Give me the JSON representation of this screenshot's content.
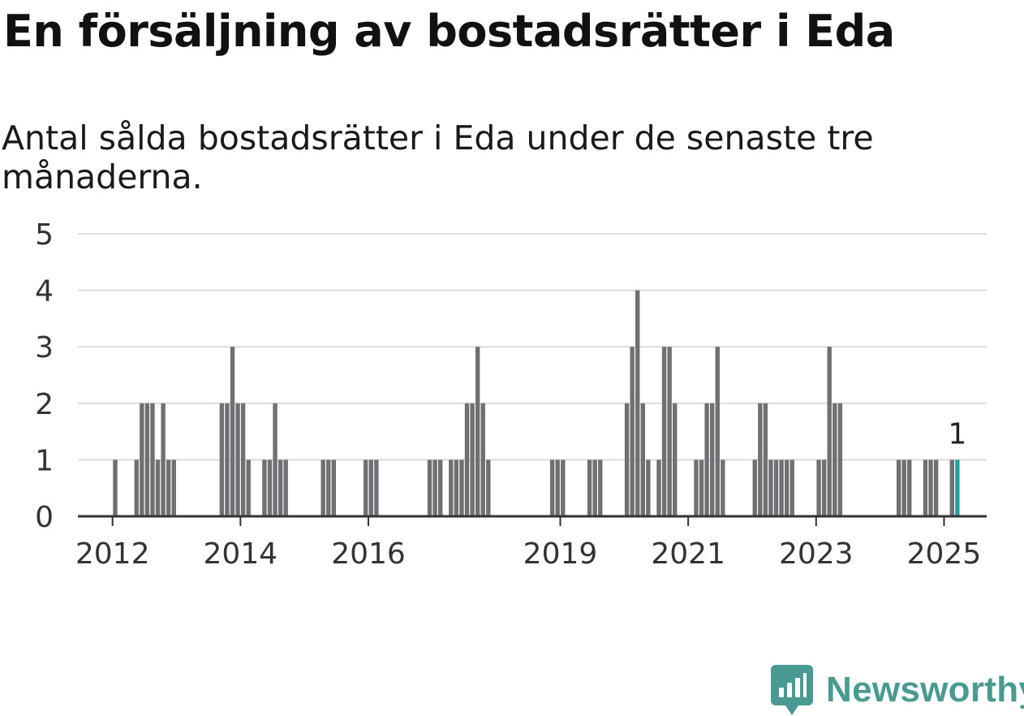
{
  "title": "En försäljning av bostadsrätter i Eda",
  "subtitle": "Antal sålda bostadsrätter i Eda under de senaste tre månaderna.",
  "logo_text": "Newsworthy",
  "colors": {
    "bar": "#707074",
    "highlight": "#1fa39a",
    "grid": "#dcdcdc",
    "axis": "#333333",
    "brand": "#4a9a94"
  },
  "chart_data": {
    "type": "bar",
    "title": "En försäljning av bostadsrätter i Eda",
    "subtitle": "Antal sålda bostadsrätter i Eda under de senaste tre månaderna.",
    "xlabel": "",
    "ylabel": "",
    "ylim": [
      0,
      5
    ],
    "yticks": [
      0,
      1,
      2,
      3,
      4,
      5
    ],
    "grid": true,
    "x_tick_labels": [
      "2012",
      "2014",
      "2016",
      "2019",
      "2021",
      "2023",
      "2025"
    ],
    "series": [
      {
        "x": [
          "2012-01",
          "2012-05",
          "2012-06",
          "2012-07",
          "2012-08",
          "2012-09",
          "2012-10",
          "2012-11",
          "2012-12",
          "2013-09",
          "2013-10",
          "2013-11",
          "2013-12",
          "2014-01",
          "2014-02",
          "2014-05",
          "2014-06",
          "2014-07",
          "2014-08",
          "2014-09",
          "2015-04",
          "2015-05",
          "2015-06",
          "2015-12",
          "2016-01",
          "2016-02",
          "2016-12",
          "2017-01",
          "2017-02",
          "2017-04",
          "2017-05",
          "2017-06",
          "2017-07",
          "2017-08",
          "2017-09",
          "2017-10",
          "2017-11",
          "2018-11",
          "2018-12",
          "2019-01",
          "2019-06",
          "2019-07",
          "2019-08",
          "2020-01",
          "2020-02",
          "2020-03",
          "2020-04",
          "2020-05",
          "2020-07",
          "2020-08",
          "2020-09",
          "2020-10",
          "2021-02",
          "2021-03",
          "2021-04",
          "2021-05",
          "2021-06",
          "2021-07",
          "2022-01",
          "2022-02",
          "2022-03",
          "2022-04",
          "2022-05",
          "2022-06",
          "2022-07",
          "2022-08",
          "2023-01",
          "2023-02",
          "2023-03",
          "2023-04",
          "2023-05",
          "2024-04",
          "2024-05",
          "2024-06",
          "2024-09",
          "2024-10",
          "2024-11",
          "2025-02",
          "2025-03"
        ],
        "values": [
          1,
          1,
          2,
          2,
          2,
          1,
          2,
          1,
          1,
          2,
          2,
          3,
          2,
          2,
          1,
          1,
          1,
          2,
          1,
          1,
          1,
          1,
          1,
          1,
          1,
          1,
          1,
          1,
          1,
          1,
          1,
          1,
          2,
          2,
          3,
          2,
          1,
          1,
          1,
          1,
          1,
          1,
          1,
          2,
          3,
          4,
          2,
          1,
          1,
          3,
          3,
          2,
          1,
          1,
          2,
          2,
          3,
          1,
          1,
          2,
          2,
          1,
          1,
          1,
          1,
          1,
          1,
          1,
          3,
          2,
          2,
          1,
          1,
          1,
          1,
          1,
          1,
          1,
          1
        ],
        "highlight": "2025-03",
        "highlight_label": "1"
      }
    ]
  }
}
